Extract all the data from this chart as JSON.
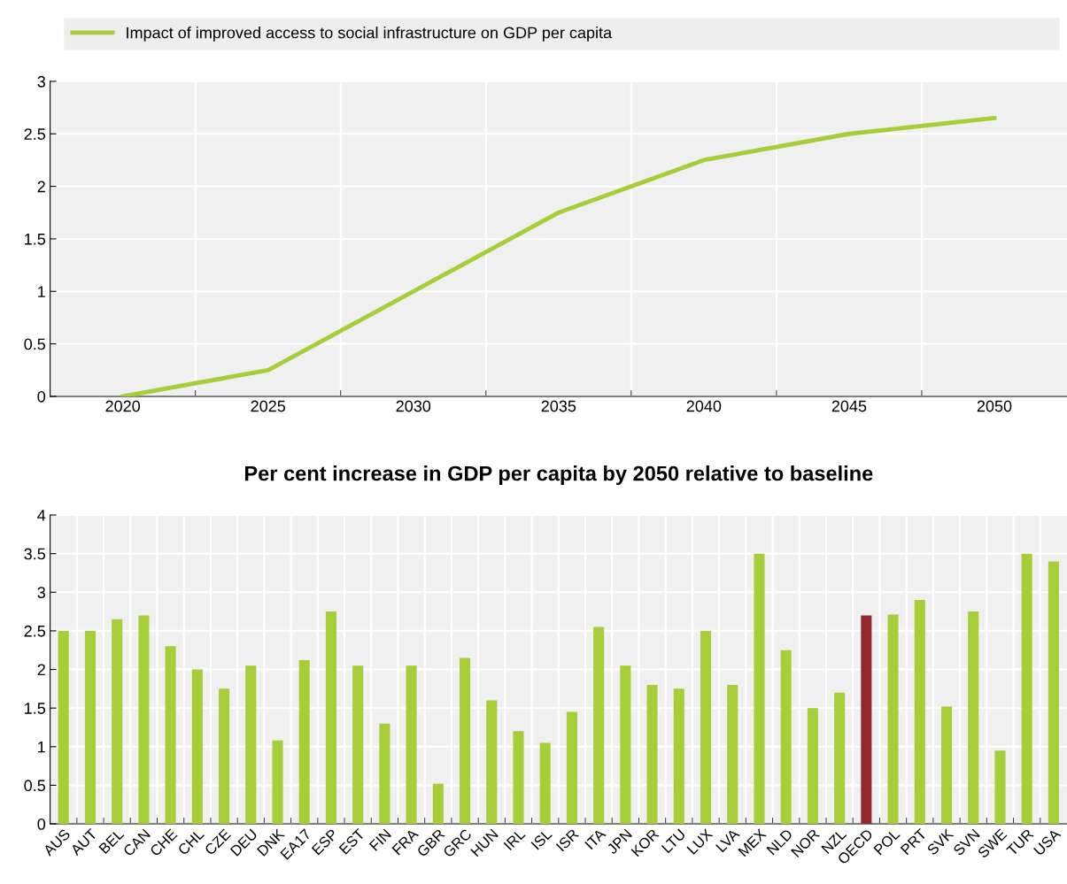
{
  "chart_data": [
    {
      "type": "line",
      "categories": [
        "2020",
        "2025",
        "2030",
        "2035",
        "2040",
        "2045",
        "2050"
      ],
      "series": [
        {
          "name": "Impact of improved access to social infrastructure on GDP per capita",
          "color": "#a6ce39",
          "values": [
            0,
            0.25,
            1.0,
            1.75,
            2.25,
            2.5,
            2.65
          ]
        }
      ],
      "ylim": [
        0,
        3
      ],
      "yticks": [
        0,
        0.5,
        1,
        1.5,
        2,
        2.5,
        3
      ],
      "grid": true,
      "legend": "top",
      "marker": "none",
      "line_style": "solid"
    },
    {
      "type": "bar",
      "title": "Per cent increase in GDP per capita by 2050 relative to baseline",
      "categories": [
        "AUS",
        "AUT",
        "BEL",
        "CAN",
        "CHE",
        "CHL",
        "CZE",
        "DEU",
        "DNK",
        "EA17",
        "ESP",
        "EST",
        "FIN",
        "FRA",
        "GBR",
        "GRC",
        "HUN",
        "IRL",
        "ISL",
        "ISR",
        "ITA",
        "JPN",
        "KOR",
        "LTU",
        "LUX",
        "LVA",
        "MEX",
        "NLD",
        "NOR",
        "NZL",
        "OECD",
        "POL",
        "PRT",
        "SVK",
        "SVN",
        "SWE",
        "TUR",
        "USA"
      ],
      "values": [
        2.5,
        2.5,
        2.65,
        2.7,
        2.3,
        2.0,
        1.75,
        2.05,
        1.08,
        2.12,
        2.75,
        2.05,
        1.3,
        2.05,
        0.52,
        2.15,
        1.6,
        1.2,
        1.05,
        1.45,
        2.55,
        2.05,
        1.8,
        1.75,
        2.5,
        1.8,
        3.5,
        2.25,
        1.5,
        1.7,
        2.7,
        2.71,
        2.9,
        1.52,
        2.75,
        0.95,
        3.5,
        3.4
      ],
      "colors": [
        "#a6ce39",
        "#a6ce39",
        "#a6ce39",
        "#a6ce39",
        "#a6ce39",
        "#a6ce39",
        "#a6ce39",
        "#a6ce39",
        "#a6ce39",
        "#a6ce39",
        "#a6ce39",
        "#a6ce39",
        "#a6ce39",
        "#a6ce39",
        "#a6ce39",
        "#a6ce39",
        "#a6ce39",
        "#a6ce39",
        "#a6ce39",
        "#a6ce39",
        "#a6ce39",
        "#a6ce39",
        "#a6ce39",
        "#a6ce39",
        "#a6ce39",
        "#a6ce39",
        "#a6ce39",
        "#a6ce39",
        "#a6ce39",
        "#a6ce39",
        "#93272c",
        "#a6ce39",
        "#a6ce39",
        "#a6ce39",
        "#a6ce39",
        "#a6ce39",
        "#a6ce39",
        "#a6ce39"
      ],
      "ylim": [
        0,
        4
      ],
      "yticks": [
        0,
        0.5,
        1,
        1.5,
        2,
        2.5,
        3,
        3.5,
        4
      ],
      "grid": true
    }
  ]
}
